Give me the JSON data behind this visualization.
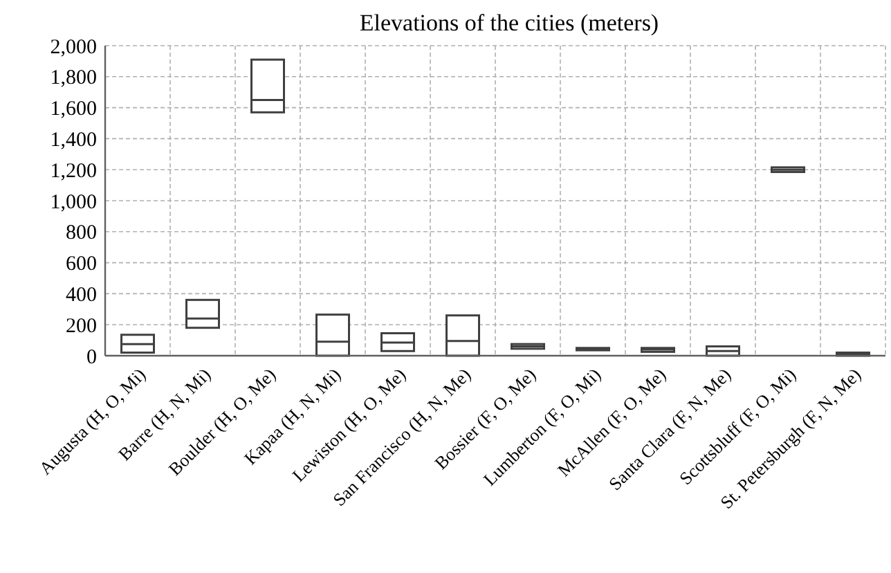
{
  "chart_data": {
    "type": "box",
    "title": "Elevations of the cities (meters)",
    "categories": [
      "Augusta (H, O, Mi)",
      "Barre (H, N, Mi)",
      "Boulder (H, O, Me)",
      "Kapaa (H, N, Mi)",
      "Lewiston (H, O, Me)",
      "San Francisco (H, N, Me)",
      "Bossier (F, O, Me)",
      "Lumberton (F, O, Mi)",
      "McAllen (F, O, Me)",
      "Santa Clara (F, N, Me)",
      "Scottsbluff (F, O, Mi)",
      "St. Petersburgh (F, N, Me)"
    ],
    "boxes": [
      {
        "low": 20,
        "q1": 20,
        "median": 75,
        "q3": 135,
        "high": 135
      },
      {
        "low": 180,
        "q1": 180,
        "median": 240,
        "q3": 360,
        "high": 360
      },
      {
        "low": 1570,
        "q1": 1570,
        "median": 1650,
        "q3": 1910,
        "high": 1910
      },
      {
        "low": 0,
        "q1": 0,
        "median": 90,
        "q3": 265,
        "high": 265
      },
      {
        "low": 30,
        "q1": 30,
        "median": 85,
        "q3": 145,
        "high": 145
      },
      {
        "low": 0,
        "q1": 0,
        "median": 95,
        "q3": 260,
        "high": 260
      },
      {
        "low": 45,
        "q1": 45,
        "median": 60,
        "q3": 75,
        "high": 75
      },
      {
        "low": 35,
        "q1": 35,
        "median": 42,
        "q3": 50,
        "high": 50
      },
      {
        "low": 25,
        "q1": 25,
        "median": 40,
        "q3": 50,
        "high": 50
      },
      {
        "low": 0,
        "q1": 0,
        "median": 30,
        "q3": 60,
        "high": 60
      },
      {
        "low": 1185,
        "q1": 1185,
        "median": 1200,
        "q3": 1215,
        "high": 1215
      },
      {
        "low": 0,
        "q1": 0,
        "median": 10,
        "q3": 20,
        "high": 20
      }
    ],
    "color": "#404040",
    "ylim": [
      0,
      2000
    ],
    "yticks": [
      {
        "value": 0,
        "label": "0"
      },
      {
        "value": 200,
        "label": "200"
      },
      {
        "value": 400,
        "label": "400"
      },
      {
        "value": 600,
        "label": "600"
      },
      {
        "value": 800,
        "label": "800"
      },
      {
        "value": 1000,
        "label": "1,000"
      },
      {
        "value": 1200,
        "label": "1,200"
      },
      {
        "value": 1400,
        "label": "1,400"
      },
      {
        "value": 1600,
        "label": "1,600"
      },
      {
        "value": 1800,
        "label": "1,800"
      },
      {
        "value": 2000,
        "label": "2,000"
      }
    ],
    "grid": true
  }
}
